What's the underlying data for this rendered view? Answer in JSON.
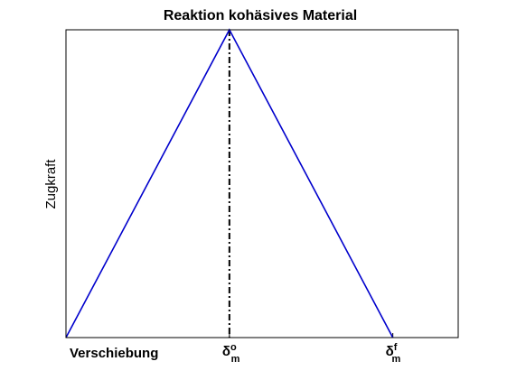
{
  "chart_data": {
    "type": "line",
    "title": "Reaktion kohäsives Material",
    "xlabel": "Verschiebung",
    "ylabel": "Zugkraft",
    "x": [
      0,
      0.5,
      1
    ],
    "values": [
      0,
      1,
      0
    ],
    "color": "#0000cc",
    "xlim": [
      0,
      1.2
    ],
    "ylim": [
      0,
      1
    ],
    "xticks": [
      {
        "value": 0.5,
        "label": "δ",
        "sub": "m",
        "sup": "o"
      },
      {
        "value": 1,
        "label": "δ",
        "sub": "m",
        "sup": "f"
      }
    ]
  }
}
